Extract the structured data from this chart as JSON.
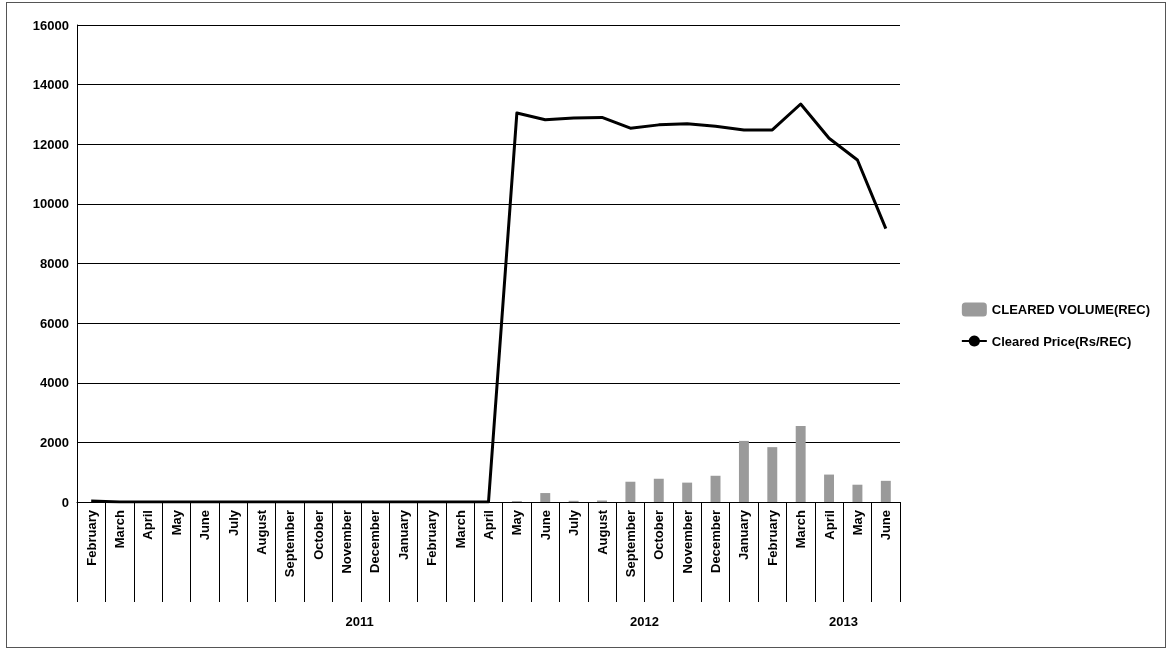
{
  "chart_data": {
    "type": "bar",
    "categories": [
      "February",
      "March",
      "April",
      "May",
      "June",
      "July",
      "August",
      "September",
      "October",
      "November",
      "December",
      "January",
      "February",
      "March",
      "April",
      "May",
      "June",
      "July",
      "August",
      "September",
      "October",
      "November",
      "December",
      "January",
      "February",
      "March",
      "April",
      "May",
      "June"
    ],
    "series": [
      {
        "name": "CLEARED VOLUME(REC)",
        "color": "#9a9a9a",
        "values": [
          0,
          0,
          0,
          0,
          0,
          0,
          0,
          0,
          0,
          0,
          0,
          0,
          0,
          0,
          0,
          30,
          300,
          40,
          50,
          680,
          780,
          650,
          880,
          2050,
          1840,
          2550,
          920,
          580,
          710
        ]
      },
      {
        "name": "Cleared Price(Rs/REC)",
        "type": "line",
        "color": "#000000",
        "values": [
          30,
          0,
          0,
          0,
          0,
          0,
          0,
          0,
          0,
          0,
          0,
          0,
          0,
          0,
          0,
          13050,
          12820,
          12880,
          12900,
          12540,
          12650,
          12690,
          12600,
          12480,
          12480,
          13350,
          12200,
          11470,
          9170
        ]
      }
    ],
    "ylim": [
      0,
      16000
    ],
    "yticks": [
      0,
      2000,
      4000,
      6000,
      8000,
      10000,
      12000,
      14000,
      16000
    ],
    "grid": "y",
    "legend": "right",
    "marker": "none",
    "line_style": "solid",
    "annotations": [
      "2011",
      "2012",
      "2013"
    ]
  }
}
